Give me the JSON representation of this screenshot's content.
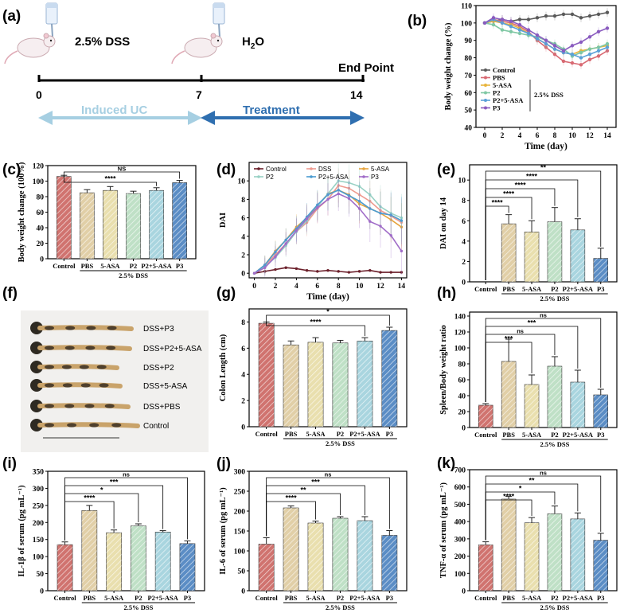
{
  "colors": {
    "Control": "#d0736f",
    "PBS": "#e1cfa7",
    "5-ASA": "#e9dfae",
    "P2": "#bfe0c6",
    "P2+5-ASA": "#a9d5df",
    "P3": "#5b8dc5",
    "axis": "#000000",
    "induced_arrow": "#a6cfe2",
    "treatment_arrow": "#2f6fb0"
  },
  "panel_a": {
    "label": "(a)",
    "dss_text": "2.5% DSS",
    "water_text": "H2O",
    "water_main": "H",
    "water_sub": "2",
    "water_tail": "O",
    "endpoint": "End Point",
    "ticks": [
      "0",
      "7",
      "14"
    ],
    "induced": "Induced UC",
    "treatment": "Treatment"
  },
  "panel_f": {
    "label": "(f)",
    "rows": [
      "DSS+P3",
      "DSS+P2+5-ASA",
      "DSS+P2",
      "DSS+5-ASA",
      "DSS+PBS",
      "Control"
    ]
  },
  "chart_data": [
    {
      "panel": "b",
      "label": "(b)",
      "type": "line",
      "xlabel": "Time (day)",
      "ylabel": "Body weight change (%)",
      "x": [
        0,
        1,
        2,
        3,
        4,
        5,
        6,
        7,
        8,
        9,
        10,
        11,
        12,
        13,
        14
      ],
      "xticks": [
        "0",
        "2",
        "4",
        "6",
        "8",
        "10",
        "12",
        "14"
      ],
      "yticks": [
        "40",
        "50",
        "60",
        "70",
        "80",
        "90",
        "100",
        "110"
      ],
      "xlim": [
        -1,
        15
      ],
      "ylim": [
        40,
        110
      ],
      "legend_note": "2.5% DSS",
      "series": [
        {
          "name": "Control",
          "color": "#5a5a5a",
          "values": [
            100,
            101,
            102,
            101,
            102,
            102,
            103,
            104,
            104,
            105,
            105,
            103,
            104,
            105,
            106
          ]
        },
        {
          "name": "PBS",
          "color": "#d86a73",
          "values": [
            100,
            102,
            101,
            100,
            98,
            95,
            90,
            86,
            82,
            78,
            77,
            76,
            79,
            81,
            84
          ]
        },
        {
          "name": "5-ASA",
          "color": "#e8b43c",
          "values": [
            100,
            101,
            100,
            99,
            97,
            94,
            91,
            88,
            85,
            83,
            82,
            84,
            85,
            86,
            87
          ]
        },
        {
          "name": "P2",
          "color": "#7fc8a4",
          "values": [
            100,
            99,
            96,
            95,
            94,
            93,
            92,
            90,
            88,
            85,
            81,
            83,
            85,
            86,
            88
          ]
        },
        {
          "name": "P2+5-ASA",
          "color": "#5aa0d8",
          "values": [
            100,
            102,
            100,
            98,
            96,
            94,
            91,
            88,
            85,
            83,
            82,
            80,
            82,
            84,
            86
          ]
        },
        {
          "name": "P3",
          "color": "#8a5bbf",
          "values": [
            100,
            103,
            102,
            101,
            99,
            96,
            93,
            90,
            87,
            84,
            87,
            89,
            92,
            95,
            97
          ]
        }
      ]
    },
    {
      "panel": "c",
      "label": "(c)",
      "type": "bar",
      "ylabel": "Body weight change (100%)",
      "group_label": "2.5% DSS",
      "categories": [
        "Control",
        "PBS",
        "5-ASA",
        "P2",
        "P2+5-ASA",
        "P3"
      ],
      "values": [
        106,
        85,
        88,
        84,
        88,
        98
      ],
      "errors": [
        1.5,
        4,
        5,
        3,
        3.5,
        3
      ],
      "yticks": [
        "0",
        "20",
        "40",
        "60",
        "80",
        "100",
        "120"
      ],
      "ylim": [
        0,
        120
      ],
      "sig": [
        {
          "text": "NS"
        },
        {
          "text": "****"
        }
      ]
    },
    {
      "panel": "d",
      "label": "(d)",
      "type": "line",
      "xlabel": "Time (day)",
      "ylabel": "DAI",
      "x": [
        0,
        1,
        2,
        3,
        4,
        5,
        6,
        7,
        8,
        9,
        10,
        11,
        12,
        13,
        14
      ],
      "xticks": [
        "0",
        "2",
        "4",
        "6",
        "8",
        "10",
        "12",
        "14"
      ],
      "yticks": [
        "0",
        "2",
        "4",
        "6",
        "8",
        "10"
      ],
      "xlim": [
        -0.5,
        14.5
      ],
      "ylim": [
        -0.5,
        12
      ],
      "series": [
        {
          "name": "Control",
          "color": "#6b1f2a",
          "values": [
            0,
            0.2,
            0.4,
            0.6,
            0.5,
            0.3,
            0.2,
            0.3,
            0.2,
            0.1,
            0.2,
            0.3,
            0.1,
            0.1,
            0.1
          ]
        },
        {
          "name": "DSS",
          "color": "#ee9a8f",
          "values": [
            0,
            0.8,
            2,
            3.2,
            4.5,
            5.5,
            7,
            8,
            9.5,
            9.2,
            8.5,
            7.8,
            6.8,
            6.2,
            5.5
          ]
        },
        {
          "name": "5-ASA",
          "color": "#e7a43e",
          "values": [
            0,
            0.9,
            2.4,
            3.6,
            5,
            6,
            7.3,
            8.6,
            9,
            8.5,
            7.5,
            7,
            6.5,
            5.8,
            5
          ]
        },
        {
          "name": "P2",
          "color": "#98d1c4",
          "values": [
            0,
            0.7,
            1.7,
            3,
            4.5,
            5.7,
            7.2,
            8.6,
            10,
            9.8,
            9.4,
            8.5,
            7.2,
            6.5,
            6
          ]
        },
        {
          "name": "P2+5-ASA",
          "color": "#4a9bd0",
          "values": [
            0,
            0.9,
            2.3,
            3.6,
            4.8,
            6.1,
            7.4,
            8.5,
            9,
            8.4,
            7.8,
            7,
            6.5,
            6.3,
            5.7
          ]
        },
        {
          "name": "P3",
          "color": "#a06cc8",
          "values": [
            0,
            0.6,
            1.8,
            3.2,
            4.6,
            5.9,
            7.1,
            8,
            8.6,
            8.1,
            7,
            5.6,
            5.1,
            4.1,
            2.4
          ]
        }
      ]
    },
    {
      "panel": "e",
      "label": "(e)",
      "type": "bar",
      "ylabel": "DAI on day 14",
      "group_label": "2.5% DSS",
      "categories": [
        "Control",
        "PBS",
        "5-ASA",
        "P2",
        "P2+5-ASA",
        "P3"
      ],
      "values": [
        0,
        5.7,
        4.9,
        5.9,
        5.1,
        2.3
      ],
      "errors": [
        0,
        0.9,
        1.1,
        1.4,
        1.1,
        1.0
      ],
      "yticks": [
        "0",
        "2",
        "4",
        "6",
        "8",
        "10"
      ],
      "ylim": [
        0,
        11.5
      ],
      "sig": [
        {
          "text": "**"
        },
        {
          "text": "****"
        },
        {
          "text": "****"
        },
        {
          "text": "****"
        },
        {
          "text": "****"
        }
      ]
    },
    {
      "panel": "g",
      "label": "(g)",
      "type": "bar",
      "ylabel": "Colon Length (cm)",
      "group_label": "2.5% DSS",
      "categories": [
        "Control",
        "PBS",
        "5-ASA",
        "P2",
        "P2+5-ASA",
        "P3"
      ],
      "values": [
        7.9,
        6.25,
        6.45,
        6.4,
        6.55,
        7.35
      ],
      "errors": [
        0.1,
        0.3,
        0.35,
        0.2,
        0.25,
        0.25
      ],
      "yticks": [
        "0",
        "2",
        "4",
        "6",
        "8"
      ],
      "ylim": [
        0,
        9
      ],
      "sig": [
        {
          "text": "*"
        },
        {
          "text": "****"
        }
      ]
    },
    {
      "panel": "h",
      "label": "(h)",
      "type": "bar",
      "ylabel": "Spleen/Body weight ratio",
      "group_label": "2.5% DSS",
      "categories": [
        "Control",
        "PBS",
        "5-ASA",
        "P2",
        "P2+5-ASA",
        "P3"
      ],
      "values": [
        28,
        83,
        54,
        77,
        57,
        41
      ],
      "errors": [
        2,
        28,
        12,
        12,
        15,
        7
      ],
      "yticks": [
        "0",
        "20",
        "40",
        "60",
        "80",
        "100",
        "120",
        "140"
      ],
      "ylim": [
        0,
        145
      ],
      "sig": [
        {
          "text": "ns"
        },
        {
          "text": "***"
        },
        {
          "text": "ns"
        },
        {
          "text": "***"
        }
      ]
    },
    {
      "panel": "i",
      "label": "(i)",
      "type": "bar",
      "ylabel": "IL-1β of serum (pg mL⁻¹)",
      "group_label": "2.5% DSS",
      "categories": [
        "Control",
        "PBS",
        "5-ASA",
        "P2",
        "P2+5-ASA",
        "P3"
      ],
      "values": [
        135,
        235,
        170,
        190,
        172,
        138
      ],
      "errors": [
        8,
        15,
        8,
        6,
        4,
        8
      ],
      "yticks": [
        "0",
        "50",
        "100",
        "150",
        "200",
        "250",
        "300",
        "350"
      ],
      "ylim": [
        0,
        350
      ],
      "sig": [
        {
          "text": "ns"
        },
        {
          "text": "***"
        },
        {
          "text": "*"
        },
        {
          "text": "****"
        }
      ]
    },
    {
      "panel": "j",
      "label": "(j)",
      "type": "bar",
      "ylabel": "IL-6 of serum (pg mL⁻¹)",
      "group_label": "2.5% DSS",
      "categories": [
        "Control",
        "PBS",
        "5-ASA",
        "P2",
        "P2+5-ASA",
        "P3"
      ],
      "values": [
        117,
        208,
        170,
        182,
        176,
        139
      ],
      "errors": [
        16,
        5,
        5,
        4,
        10,
        12
      ],
      "yticks": [
        "0",
        "50",
        "100",
        "150",
        "200",
        "250",
        "300"
      ],
      "ylim": [
        0,
        300
      ],
      "sig": [
        {
          "text": "ns"
        },
        {
          "text": "***"
        },
        {
          "text": "**"
        },
        {
          "text": "****"
        }
      ]
    },
    {
      "panel": "k",
      "label": "(k)",
      "type": "bar",
      "ylabel": "TNF-α of serum (pg mL⁻¹)",
      "group_label": "2.5% DSS",
      "categories": [
        "Control",
        "PBS",
        "5-ASA",
        "P2",
        "P2+5-ASA",
        "P3"
      ],
      "values": [
        265,
        530,
        393,
        445,
        415,
        292
      ],
      "errors": [
        18,
        15,
        30,
        45,
        35,
        40
      ],
      "yticks": [
        "0",
        "100",
        "200",
        "300",
        "400",
        "500",
        "600",
        "700"
      ],
      "ylim": [
        0,
        700
      ],
      "sig": [
        {
          "text": "ns"
        },
        {
          "text": "**"
        },
        {
          "text": "*"
        },
        {
          "text": "****"
        }
      ]
    }
  ]
}
